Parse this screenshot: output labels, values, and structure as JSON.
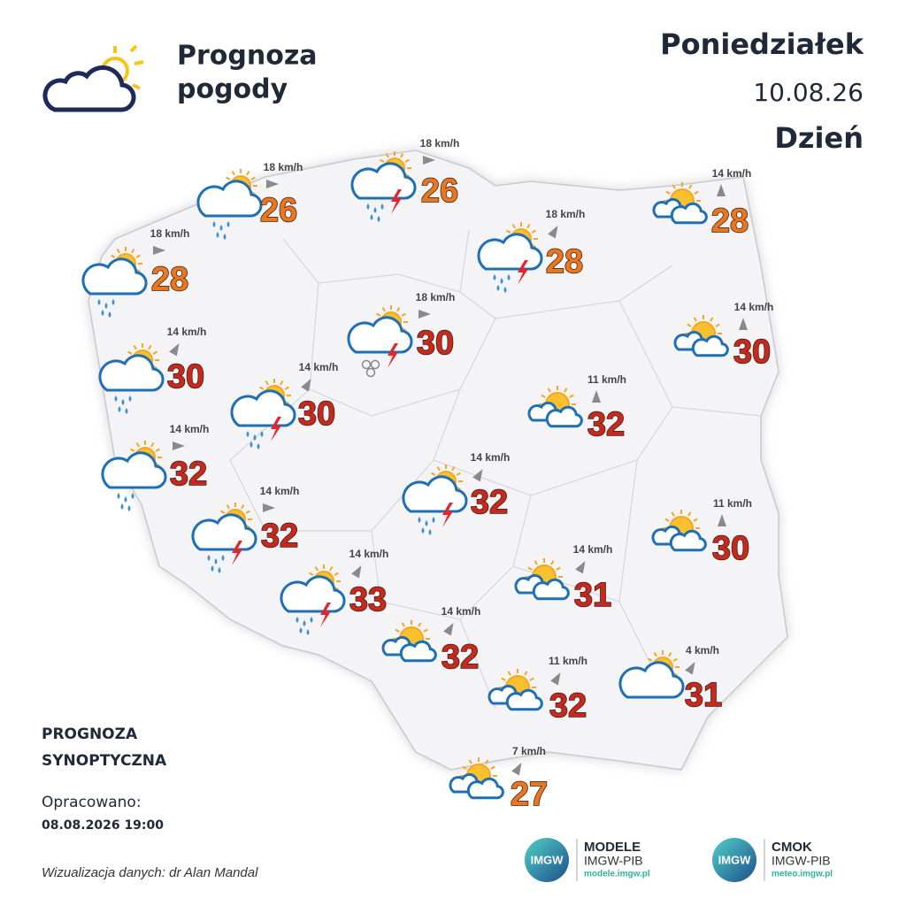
{
  "header": {
    "title": [
      "Prognoza",
      "pogody"
    ],
    "day": "Poniedziałek",
    "date": "10.08.26",
    "period": "Dzień"
  },
  "stations": [
    {
      "temperature": 26,
      "wind": "18 km/h"
    },
    {
      "temperature": 26,
      "wind": "18 km/h"
    },
    {
      "temperature": 28,
      "wind": "14 km/h"
    },
    {
      "temperature": 28,
      "wind": "18 km/h"
    },
    {
      "temperature": 28,
      "wind": "18 km/h"
    },
    {
      "temperature": 30,
      "wind": "18 km/h"
    },
    {
      "temperature": 30,
      "wind": "14 km/h"
    },
    {
      "temperature": 30,
      "wind": "14 km/h"
    },
    {
      "temperature": 30,
      "wind": "14 km/h"
    },
    {
      "temperature": 32,
      "wind": "11 km/h"
    },
    {
      "temperature": 32,
      "wind": "14 km/h"
    },
    {
      "temperature": 32,
      "wind": "14 km/h"
    },
    {
      "temperature": 30,
      "wind": "11 km/h"
    },
    {
      "temperature": 32,
      "wind": "14 km/h"
    },
    {
      "temperature": 31,
      "wind": "14 km/h"
    },
    {
      "temperature": 33,
      "wind": "14 km/h"
    },
    {
      "temperature": 32,
      "wind": "14 km/h"
    },
    {
      "temperature": 31,
      "wind": "4 km/h"
    },
    {
      "temperature": 32,
      "wind": "11 km/h"
    },
    {
      "temperature": 27,
      "wind": "7 km/h"
    }
  ],
  "footer": {
    "label": [
      "PROGNOZA",
      "SYNOPTYCZNA"
    ],
    "prepared": "Opracowano:",
    "prepared_date": "08.08.2026 19:00",
    "credit": "Wizualizacja danych: dr Alan Mandal",
    "logos": [
      {
        "mark": "IMGW",
        "name": "MODELE",
        "org": "IMGW-PIB",
        "url": "modele.imgw.pl"
      },
      {
        "mark": "IMGW",
        "name": "CMOK",
        "org": "IMGW-PIB",
        "url": "meteo.imgw.pl"
      }
    ]
  }
}
